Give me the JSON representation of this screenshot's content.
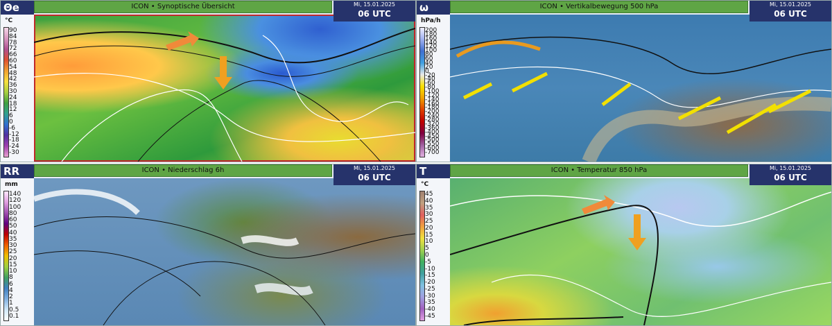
{
  "panels": [
    {
      "label": "Θe",
      "title": "ICON • Synoptische Übersicht",
      "date": "Mi, 15.01.2025",
      "time": "06 UTC",
      "unit": "°C",
      "scale": [
        90,
        84,
        78,
        72,
        66,
        60,
        54,
        48,
        42,
        36,
        30,
        24,
        18,
        12,
        6,
        0,
        -6,
        -12,
        -18,
        -24,
        -30
      ]
    },
    {
      "label": "ω",
      "title": "ICON • Vertikalbewegung 500 hPa",
      "date": "Mi, 15.01.2025",
      "time": "06 UTC",
      "unit": "hPa/h",
      "scale": [
        200,
        180,
        160,
        140,
        120,
        100,
        80,
        60,
        40,
        20,
        0,
        -20,
        -40,
        -60,
        -80,
        -100,
        -120,
        -140,
        -160,
        -180,
        -200,
        -240,
        -280,
        -320,
        -360,
        -400,
        -450,
        -500,
        -550,
        -600,
        -700
      ]
    },
    {
      "label": "RR",
      "title": "ICON • Niederschlag 6h",
      "date": "Mi, 15.01.2025",
      "time": "06 UTC",
      "unit": "mm",
      "scale": [
        140,
        120,
        100,
        80,
        60,
        50,
        40,
        35,
        30,
        25,
        20,
        15,
        10,
        8,
        6,
        4,
        2,
        1,
        0.5,
        0.1
      ]
    },
    {
      "label": "T",
      "title": "ICON • Temperatur 850 hPa",
      "date": "Mi, 15.01.2025",
      "time": "06 UTC",
      "unit": "°C",
      "scale": [
        45,
        40,
        35,
        30,
        25,
        20,
        15,
        10,
        5,
        0,
        -5,
        -10,
        -15,
        -20,
        -25,
        -30,
        -35,
        -40,
        -45
      ]
    }
  ]
}
